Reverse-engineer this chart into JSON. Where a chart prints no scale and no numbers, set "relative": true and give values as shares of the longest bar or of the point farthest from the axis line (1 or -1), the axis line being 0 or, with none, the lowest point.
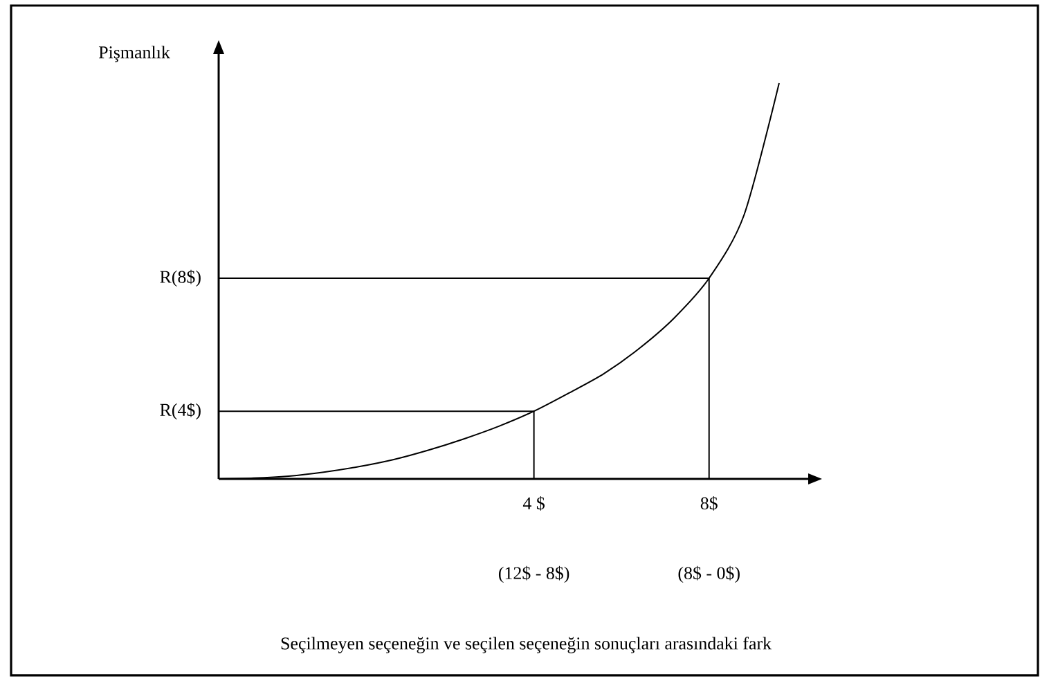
{
  "chart_data": {
    "type": "line",
    "relative": true,
    "color": "#000000",
    "ylabel": "Pişmanlık",
    "categories": [
      null,
      null,
      null,
      null,
      null,
      null,
      null,
      null,
      null,
      "4 $",
      null,
      null,
      null,
      null,
      "8$",
      null,
      null
    ],
    "values": [
      0,
      0.002,
      0.007,
      0.017,
      0.031,
      0.049,
      0.073,
      0.101,
      0.133,
      0.171,
      0.217,
      0.266,
      0.329,
      0.406,
      0.507,
      0.667,
      1
    ],
    "ref_lines": [
      {
        "axis": "y",
        "value": 0.507,
        "label": "R(8$)"
      },
      {
        "axis": "y",
        "value": 0.171,
        "label": "R(4$)"
      }
    ],
    "annotations": [
      "(12$ - 8$)",
      "(8$ - 0$)",
      "Seçilmeyen seçeneğin ve seçilen seçeneğin sonuçları arasındaki fark"
    ],
    "grid": false,
    "marker": "none",
    "line_style": "solid"
  }
}
